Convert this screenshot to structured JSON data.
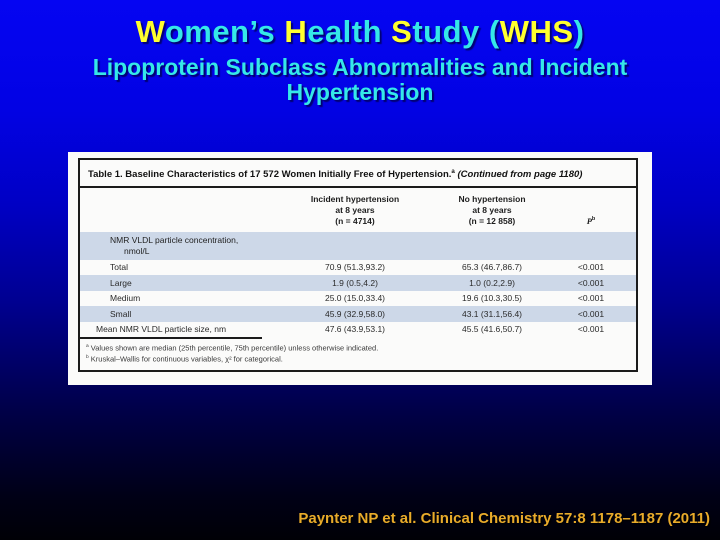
{
  "slide": {
    "title_segments": [
      {
        "text": "W"
      },
      {
        "text": "omen’s "
      },
      {
        "text": "H"
      },
      {
        "text": "ealth "
      },
      {
        "text": "S"
      },
      {
        "text": "tudy ("
      },
      {
        "text": "WHS"
      },
      {
        "text": ")"
      }
    ],
    "subtitle": "Lipoprotein Subclass Abnormalities and Incident Hypertension",
    "citation": "Paynter NP et al. Clinical Chemistry 57:8 1178–1187 (2011)",
    "colors": {
      "title_yellow": "#ffff2e",
      "title_cyan": "#35e8e8",
      "citation_gold": "#e9ab2a",
      "background_top": "#0505f2",
      "background_bottom": "#000006",
      "table_shaded_row": "#cdd8e8"
    }
  },
  "table": {
    "title": {
      "main": "Table 1. Baseline Characteristics of 17 572 Women Initially Free of Hypertension.",
      "sup": "a",
      "continued": " (Continued from page 1180)"
    },
    "headers": {
      "incident": {
        "line1": "Incident hypertension",
        "line2": "at 8 years",
        "line3": "(n = 4714)"
      },
      "no_hypertension": {
        "line1": "No hypertension",
        "line2": "at 8 years",
        "line3": "(n = 12 858)"
      },
      "p": {
        "label": "P",
        "sup": "b"
      }
    },
    "section": {
      "line1": "NMR VLDL particle concentration,",
      "line2": "nmol/L"
    },
    "rows": [
      {
        "label": "Total",
        "incident": "70.9 (51.3,93.2)",
        "no_hypertension": "65.3 (46.7,86.7)",
        "p": "<0.001"
      },
      {
        "label": "Large",
        "incident": "1.9 (0.5,4.2)",
        "no_hypertension": "1.0 (0.2,2.9)",
        "p": "<0.001"
      },
      {
        "label": "Medium",
        "incident": "25.0 (15.0,33.4)",
        "no_hypertension": "19.6 (10.3,30.5)",
        "p": "<0.001"
      },
      {
        "label": "Small",
        "incident": "45.9 (32.9,58.0)",
        "no_hypertension": "43.1 (31.1,56.4)",
        "p": "<0.001"
      },
      {
        "label": "Mean NMR VLDL particle size, nm",
        "incident": "47.6 (43.9,53.1)",
        "no_hypertension": "45.5 (41.6,50.7)",
        "p": "<0.001"
      }
    ],
    "footnotes": [
      {
        "sup": "a",
        "text": " Values shown are median (25th percentile, 75th percentile) unless otherwise indicated."
      },
      {
        "sup": "b",
        "text": " Kruskal–Wallis for continuous variables, χ² for categorical."
      }
    ]
  }
}
